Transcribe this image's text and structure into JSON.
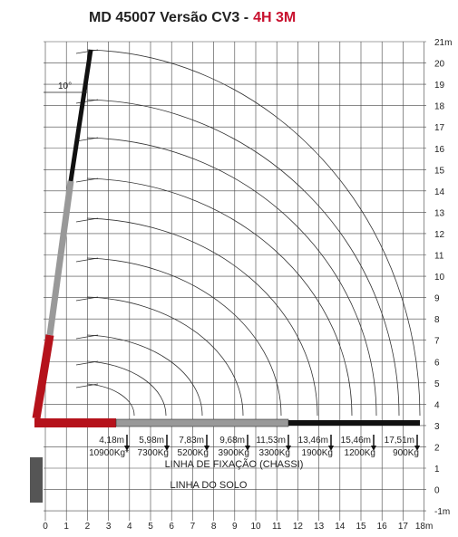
{
  "header": {
    "title": "MD 45007 Versão CV3 -",
    "title_highlight": "4H 3M"
  },
  "axes": {
    "x_labels": [
      "0",
      "1",
      "2",
      "3",
      "4",
      "5",
      "6",
      "7",
      "8",
      "9",
      "10",
      "11",
      "12",
      "13",
      "14",
      "15",
      "16",
      "17",
      "18m"
    ],
    "y_labels": [
      "21m",
      "20",
      "19",
      "18",
      "17",
      "16",
      "15",
      "14",
      "13",
      "12",
      "11",
      "10",
      "9",
      "8",
      "7",
      "6",
      "5",
      "4",
      "3",
      "2",
      "1",
      "0",
      "-1m"
    ]
  },
  "angle_label": "10°",
  "loads": [
    {
      "reach": "4,18m",
      "load": "10900Kg*"
    },
    {
      "reach": "5,98m",
      "load": "7300Kg"
    },
    {
      "reach": "7,83m",
      "load": "5200Kg"
    },
    {
      "reach": "9,68m",
      "load": "3900Kg"
    },
    {
      "reach": "11,53m",
      "load": "3300Kg"
    },
    {
      "reach": "13,46m",
      "load": "1900Kg"
    },
    {
      "reach": "15,46m",
      "load": "1200Kg"
    },
    {
      "reach": "17,51m",
      "load": "900Kg"
    }
  ],
  "lines": {
    "chassis": "LINHA DE FIXAÇÃO (CHASSI)",
    "ground": "LINHA DO SOLO"
  }
}
